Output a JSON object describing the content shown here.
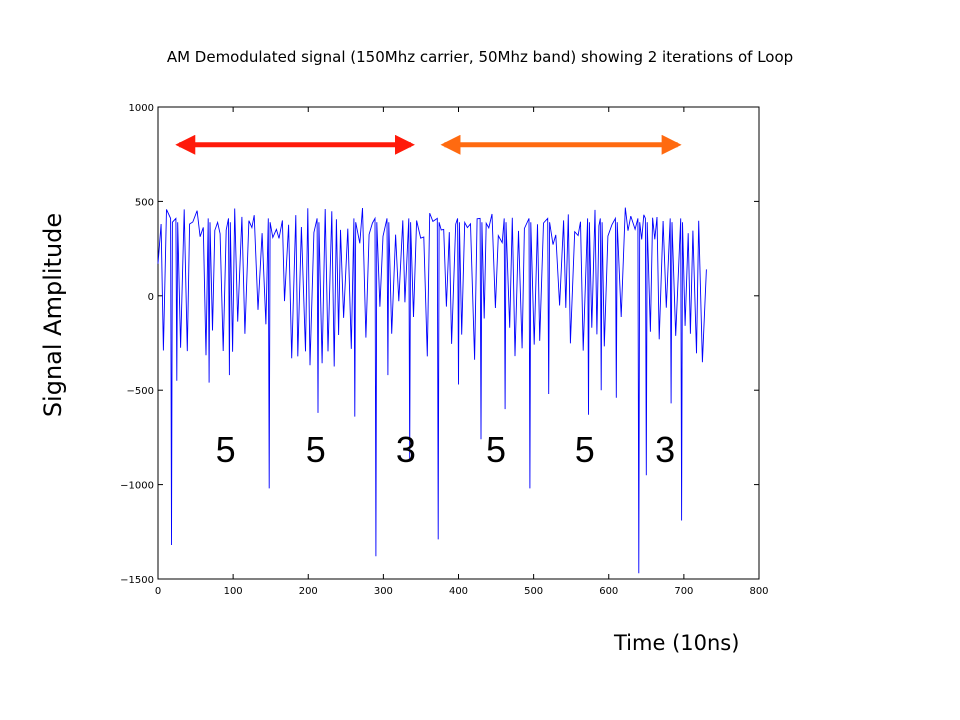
{
  "chart_data": {
    "type": "line",
    "title": "AM Demodulated signal (150Mhz carrier, 50Mhz band) showing 2 iterations of Loop",
    "xlabel": "Time  (10ns)",
    "ylabel": "Signal Amplitude",
    "xlim": [
      0,
      800
    ],
    "ylim": [
      -1500,
      1000
    ],
    "x_ticks": [
      "0",
      "100",
      "200",
      "300",
      "400",
      "500",
      "600",
      "700",
      "800"
    ],
    "y_ticks": [
      "1000",
      "500",
      "0",
      "−500",
      "−1000",
      "−1500"
    ],
    "grid": false,
    "series": [
      {
        "color": "#0000ff",
        "x_start": 0,
        "x_end": 730,
        "y_start": 170,
        "y_end": 140,
        "crest_level": 490,
        "typical_trough_level": -200,
        "deep_dips": [
          {
            "x": 18,
            "y": -1320
          },
          {
            "x": 25,
            "y": -450
          },
          {
            "x": 68,
            "y": -460
          },
          {
            "x": 95,
            "y": -420
          },
          {
            "x": 148,
            "y": -1020
          },
          {
            "x": 213,
            "y": -620
          },
          {
            "x": 262,
            "y": -640
          },
          {
            "x": 290,
            "y": -1380
          },
          {
            "x": 306,
            "y": -420
          },
          {
            "x": 335,
            "y": -870
          },
          {
            "x": 373,
            "y": -1290
          },
          {
            "x": 400,
            "y": -470
          },
          {
            "x": 430,
            "y": -760
          },
          {
            "x": 462,
            "y": -600
          },
          {
            "x": 495,
            "y": -1020
          },
          {
            "x": 520,
            "y": -520
          },
          {
            "x": 573,
            "y": -630
          },
          {
            "x": 590,
            "y": -500
          },
          {
            "x": 610,
            "y": -540
          },
          {
            "x": 640,
            "y": -1470
          },
          {
            "x": 650,
            "y": -950
          },
          {
            "x": 683,
            "y": -570
          },
          {
            "x": 697,
            "y": -1190
          }
        ]
      }
    ],
    "annotations": {
      "loop_digits": [
        {
          "label": "5",
          "x": 90
        },
        {
          "label": "5",
          "x": 210
        },
        {
          "label": "3",
          "x": 330
        },
        {
          "label": "5",
          "x": 450
        },
        {
          "label": "5",
          "x": 568
        },
        {
          "label": "3",
          "x": 675
        }
      ],
      "loop_digits_y": -880,
      "loop_arrows": [
        {
          "x_from": 15,
          "x_to": 350,
          "y": 800,
          "color": "#ff1a0a"
        },
        {
          "x_from": 368,
          "x_to": 705,
          "y": 800,
          "color": "#ff6a10"
        }
      ]
    }
  }
}
